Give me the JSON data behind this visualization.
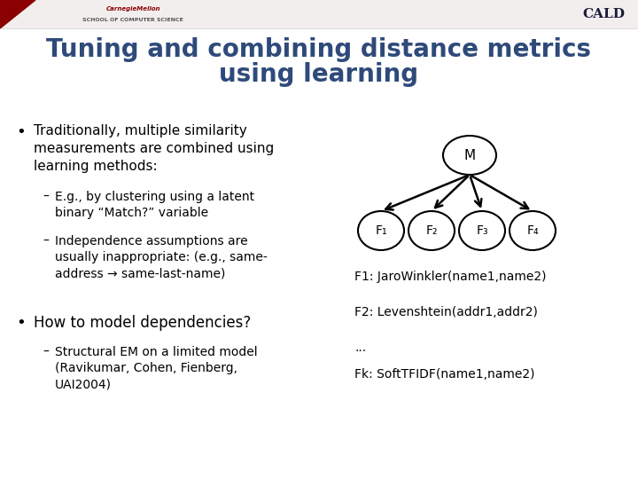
{
  "title_line1": "Tuning and combining distance metrics",
  "title_line2": "using learning",
  "title_color": "#2E4A7A",
  "title_fontsize": 20,
  "bg_color": "#FFFFFF",
  "bullet1_main": "Traditionally, multiple similarity\nmeasurements are combined using\nlearning methods:",
  "bullet1_sub1": "E.g., by clustering using a latent\nbinary “Match?” variable",
  "bullet1_sub2": "Independence assumptions are\nusually inappropriate: (e.g., same-\naddress → same-last-name)",
  "bullet2_main": "How to model dependencies?",
  "bullet2_sub1": "Structural EM on a limited model\n(Ravikumar, Cohen, Fienberg,\nUAI2004)",
  "right_label1": "F1: JaroWinkler(name1,name2)",
  "right_label2": "F2: Levenshtein(addr1,addr2)",
  "right_label3": "...",
  "right_label4": "Fk: SoftTFIDF(name1,name2)",
  "text_color": "#000000",
  "header_red": "#8B0000",
  "cmu_text": "CarnegieMellon",
  "school_text": "SCHOOL OF COMPUTER SCIENCE",
  "cald_text": "CALD",
  "node_labels": [
    "F₁",
    "F₂",
    "F₃",
    "F₄"
  ]
}
